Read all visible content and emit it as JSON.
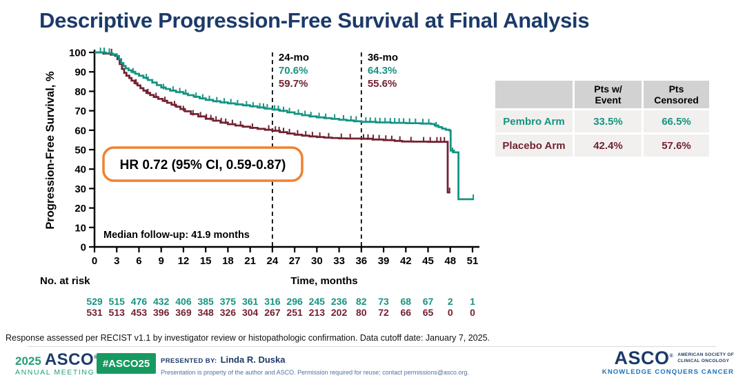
{
  "page": {
    "title": "Descriptive Progression-Free Survival at Final Analysis"
  },
  "colors": {
    "navy": "#1c3a6a",
    "teal": "#159482",
    "maroon": "#722231",
    "orange": "#f08130",
    "green": "#179a60",
    "link_blue": "#1c70b8"
  },
  "chart_data": {
    "type": "line",
    "subtype": "kaplan-meier-step",
    "xlabel": "Time, months",
    "ylabel": "Progression-Free Survival, %",
    "xlim": [
      0,
      51
    ],
    "ylim": [
      0,
      100
    ],
    "xticks": [
      0,
      3,
      6,
      9,
      12,
      15,
      18,
      21,
      24,
      27,
      30,
      33,
      36,
      39,
      42,
      45,
      48,
      51
    ],
    "yticks": [
      0,
      10,
      20,
      30,
      40,
      50,
      60,
      70,
      80,
      90,
      100
    ],
    "grid": false,
    "series": [
      {
        "name": "Pembro Arm",
        "color": "#159482",
        "points": [
          [
            0,
            100
          ],
          [
            1.5,
            99.6
          ],
          [
            2.4,
            99
          ],
          [
            3,
            98.2
          ],
          [
            3.3,
            96.5
          ],
          [
            3.6,
            94.5
          ],
          [
            3.9,
            93
          ],
          [
            4.2,
            91.8
          ],
          [
            4.6,
            90.8
          ],
          [
            5,
            90
          ],
          [
            5.5,
            89
          ],
          [
            6,
            88
          ],
          [
            6.6,
            87
          ],
          [
            7.2,
            85.8
          ],
          [
            7.8,
            84.5
          ],
          [
            8.4,
            83.2
          ],
          [
            9,
            82
          ],
          [
            9.6,
            81.2
          ],
          [
            10.2,
            80.4
          ],
          [
            11,
            79.6
          ],
          [
            12,
            78.8
          ],
          [
            12.6,
            78
          ],
          [
            13.4,
            77.2
          ],
          [
            14.2,
            76.4
          ],
          [
            15,
            75.6
          ],
          [
            16,
            74.9
          ],
          [
            17,
            74.3
          ],
          [
            18,
            73.8
          ],
          [
            19,
            73.3
          ],
          [
            20,
            72.8
          ],
          [
            21,
            72.3
          ],
          [
            22,
            71.7
          ],
          [
            23,
            71.1
          ],
          [
            24,
            70.6
          ],
          [
            25,
            70
          ],
          [
            26,
            69.2
          ],
          [
            27,
            68.4
          ],
          [
            28,
            67.7
          ],
          [
            29,
            67.1
          ],
          [
            30,
            66.6
          ],
          [
            31,
            66.2
          ],
          [
            32,
            65.8
          ],
          [
            33,
            65.4
          ],
          [
            34,
            65
          ],
          [
            35,
            64.6
          ],
          [
            36,
            64.3
          ],
          [
            38,
            64
          ],
          [
            40,
            63.8
          ],
          [
            42,
            63.6
          ],
          [
            44,
            63.4
          ],
          [
            45.4,
            63.2
          ],
          [
            45.9,
            62.4
          ],
          [
            46.4,
            61.6
          ],
          [
            46.9,
            60.8
          ],
          [
            47.4,
            60.2
          ],
          [
            47.9,
            59.8
          ],
          [
            48.05,
            49.5
          ],
          [
            48.5,
            48.6
          ],
          [
            49.1,
            24.5
          ],
          [
            51.2,
            24.5
          ]
        ],
        "censor_marks": [
          [
            0.8,
            100
          ],
          [
            1.3,
            100
          ],
          [
            2,
            99.6
          ],
          [
            5.2,
            89.5
          ],
          [
            7,
            86.5
          ],
          [
            9.3,
            81.4
          ],
          [
            10.6,
            80.1
          ],
          [
            11.5,
            79.3
          ],
          [
            12.3,
            78.5
          ],
          [
            13.7,
            76.9
          ],
          [
            14.6,
            76.1
          ],
          [
            15.5,
            75.3
          ],
          [
            16.5,
            74.6
          ],
          [
            17.5,
            74
          ],
          [
            18.4,
            73.6
          ],
          [
            19.3,
            73.1
          ],
          [
            20.5,
            72.5
          ],
          [
            21.4,
            72
          ],
          [
            22.3,
            71.5
          ],
          [
            22.8,
            71.3
          ],
          [
            23.3,
            71
          ],
          [
            24.3,
            70.4
          ],
          [
            24.8,
            70.2
          ],
          [
            25.5,
            69.6
          ],
          [
            26.3,
            69
          ],
          [
            27.5,
            68.2
          ],
          [
            28.4,
            67.6
          ],
          [
            29.2,
            67
          ],
          [
            30.3,
            66.5
          ],
          [
            31.2,
            66.1
          ],
          [
            32.4,
            65.7
          ],
          [
            33.6,
            65.3
          ],
          [
            34.6,
            64.9
          ],
          [
            35.3,
            64.7
          ],
          [
            36.6,
            64.2
          ],
          [
            37.2,
            64.1
          ],
          [
            37.9,
            64
          ],
          [
            38.5,
            63.9
          ],
          [
            39.2,
            63.9
          ],
          [
            39.9,
            63.8
          ],
          [
            40.5,
            63.8
          ],
          [
            41.1,
            63.7
          ],
          [
            41.7,
            63.7
          ],
          [
            42.5,
            63.6
          ],
          [
            43.3,
            63.5
          ],
          [
            44.3,
            63.4
          ],
          [
            45.1,
            63.3
          ],
          [
            46.1,
            61.8
          ],
          [
            48.3,
            48.6
          ],
          [
            51.1,
            24.5
          ]
        ]
      },
      {
        "name": "Placebo Arm",
        "color": "#722231",
        "points": [
          [
            0,
            100
          ],
          [
            1.2,
            99.4
          ],
          [
            2.2,
            98.8
          ],
          [
            2.8,
            98.2
          ],
          [
            3.1,
            96.5
          ],
          [
            3.4,
            94
          ],
          [
            3.7,
            91.5
          ],
          [
            4,
            89.5
          ],
          [
            4.3,
            88
          ],
          [
            4.7,
            86.8
          ],
          [
            5,
            85.5
          ],
          [
            5.4,
            84.2
          ],
          [
            5.8,
            83
          ],
          [
            6.2,
            81.6
          ],
          [
            6.6,
            80.4
          ],
          [
            7,
            79.2
          ],
          [
            7.5,
            78.1
          ],
          [
            8,
            77.1
          ],
          [
            8.6,
            76.1
          ],
          [
            9.2,
            75.1
          ],
          [
            9.8,
            74.1
          ],
          [
            10.4,
            73.1
          ],
          [
            11,
            72.1
          ],
          [
            11.6,
            70.9
          ],
          [
            12.2,
            69.7
          ],
          [
            13,
            68.3
          ],
          [
            14,
            67.1
          ],
          [
            15,
            65.9
          ],
          [
            16,
            64.9
          ],
          [
            17,
            63.9
          ],
          [
            18,
            63.1
          ],
          [
            19,
            62.4
          ],
          [
            20,
            61.8
          ],
          [
            21,
            61.2
          ],
          [
            22,
            60.7
          ],
          [
            23,
            60.2
          ],
          [
            24,
            59.7
          ],
          [
            25,
            59
          ],
          [
            26,
            58.3
          ],
          [
            27,
            57.7
          ],
          [
            28,
            57.2
          ],
          [
            29,
            56.8
          ],
          [
            30,
            56.5
          ],
          [
            31,
            56.2
          ],
          [
            32,
            56
          ],
          [
            33,
            55.8
          ],
          [
            34,
            55.7
          ],
          [
            36,
            55.6
          ],
          [
            37.5,
            55.2
          ],
          [
            39,
            54.9
          ],
          [
            40.5,
            54.5
          ],
          [
            41.5,
            54.2
          ],
          [
            43,
            54.1
          ],
          [
            45,
            54
          ],
          [
            47.5,
            54
          ],
          [
            47.65,
            28
          ],
          [
            48,
            28
          ]
        ],
        "censor_marks": [
          [
            2.3,
            99.4
          ],
          [
            5.6,
            83.8
          ],
          [
            7.2,
            78.8
          ],
          [
            8.3,
            76.8
          ],
          [
            9.5,
            74.8
          ],
          [
            10.8,
            72.6
          ],
          [
            12,
            70.1
          ],
          [
            13.3,
            67.9
          ],
          [
            14.3,
            66.9
          ],
          [
            15.1,
            65.9
          ],
          [
            15.7,
            65.4
          ],
          [
            16.4,
            64.7
          ],
          [
            17.1,
            63.9
          ],
          [
            17.7,
            63.5
          ],
          [
            18.6,
            62.9
          ],
          [
            19.7,
            62.2
          ],
          [
            21.3,
            61
          ],
          [
            23.5,
            60.1
          ],
          [
            24.4,
            59.5
          ],
          [
            24.9,
            59.3
          ],
          [
            25.5,
            58.8
          ],
          [
            26.3,
            58.2
          ],
          [
            27.4,
            57.6
          ],
          [
            28.5,
            57.1
          ],
          [
            29.4,
            56.7
          ],
          [
            30.4,
            56.4
          ],
          [
            31.6,
            56.1
          ],
          [
            33.3,
            55.8
          ],
          [
            34.5,
            55.7
          ],
          [
            36.3,
            55.5
          ],
          [
            36.9,
            55.4
          ],
          [
            37.6,
            55.2
          ],
          [
            38.4,
            55.1
          ],
          [
            39.3,
            54.9
          ],
          [
            40.1,
            54.7
          ],
          [
            41.2,
            54.4
          ],
          [
            42.7,
            54.1
          ],
          [
            44.4,
            54
          ],
          [
            45.3,
            54
          ],
          [
            46.2,
            54
          ],
          [
            46.7,
            54
          ],
          [
            47.2,
            54
          ],
          [
            47.9,
            28
          ]
        ]
      }
    ],
    "annotations": {
      "timepoint_markers": [
        {
          "month": 24,
          "label": "24-mo",
          "pembro": "70.6%",
          "placebo": "59.7%"
        },
        {
          "month": 36,
          "label": "36-mo",
          "pembro": "64.3%",
          "placebo": "55.6%"
        }
      ],
      "hr_box": {
        "text": "HR 0.72 (95% CI, 0.59-0.87)",
        "border_color": "#f08130"
      },
      "median_followup": "Median follow-up: 41.9 months"
    },
    "no_at_risk": {
      "label": "No. at risk",
      "months": [
        0,
        3,
        6,
        9,
        12,
        15,
        18,
        21,
        24,
        27,
        30,
        33,
        36,
        39,
        42,
        45,
        48,
        51
      ],
      "pembro": [
        529,
        515,
        476,
        432,
        406,
        385,
        375,
        361,
        316,
        296,
        245,
        236,
        82,
        73,
        68,
        67,
        2,
        1
      ],
      "placebo": [
        531,
        513,
        453,
        396,
        369,
        348,
        326,
        304,
        267,
        251,
        213,
        202,
        80,
        72,
        66,
        65,
        0,
        0
      ]
    }
  },
  "event_table": {
    "headers": [
      "",
      "Pts w/\nEvent",
      "Pts\nCensored"
    ],
    "rows": [
      {
        "label": "Pembro Arm",
        "event": "33.5%",
        "censored": "66.5%"
      },
      {
        "label": "Placebo Arm",
        "event": "42.4%",
        "censored": "57.6%"
      }
    ]
  },
  "footnote": {
    "text": "Response assessed per RECIST v1.1 by investigator review or histopathologic confirmation. Data cutoff date: January 7, 2025."
  },
  "footer": {
    "year": "2025",
    "asco": "ASCO",
    "reg_mark": "®",
    "meeting": "ANNUAL MEETING",
    "hashtag": "#ASCO25",
    "presented_by_label": "PRESENTED BY:",
    "presenter": "Linda R. Duska",
    "disclaimer": "Presentation is property of the author and ASCO. Permission required for reuse; contact permissions@asco.org.",
    "society_logo": "ASCO",
    "society_side": "AMERICAN SOCIETY OF\nCLINICAL ONCOLOGY",
    "tagline": "KNOWLEDGE CONQUERS CANCER"
  }
}
